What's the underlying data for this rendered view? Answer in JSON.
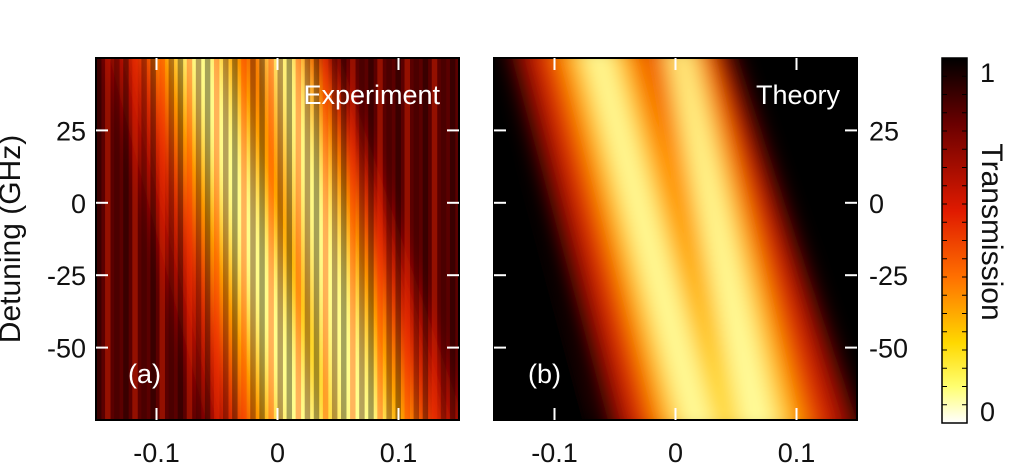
{
  "chart_data": {
    "type": "heatmap",
    "panels": [
      {
        "panel_label": "(a)",
        "title": "Experiment",
        "xticks": [
          "-0.1",
          "0",
          "0.1"
        ],
        "xtick_values": [
          -0.1,
          0,
          0.1
        ],
        "yticks": [
          "25",
          "0",
          "-25",
          "-50"
        ],
        "ytick_values": [
          25,
          0,
          -25,
          -50
        ],
        "ylabel": "Detuning (GHz)",
        "xlim": [
          -0.15,
          0.15
        ],
        "ylim": [
          -75,
          50
        ]
      },
      {
        "panel_label": "(b)",
        "title": "Theory",
        "xticks": [
          "-0.1",
          "0",
          "0.1"
        ],
        "xtick_values": [
          -0.1,
          0,
          0.1
        ],
        "yticks": [
          "25",
          "0",
          "-25",
          "-50"
        ],
        "ytick_values": [
          25,
          0,
          -25,
          -50
        ],
        "xlim": [
          -0.15,
          0.15
        ],
        "ylim": [
          -75,
          50
        ]
      }
    ],
    "colorbar": {
      "label": "Transmission",
      "ticks": [
        "1",
        "0"
      ],
      "range": [
        0,
        1
      ],
      "colormap": [
        "#000000",
        "#7a0000",
        "#e01a00",
        "#ff6a00",
        "#ffd000",
        "#ffff60",
        "#ffffff"
      ]
    },
    "features": {
      "band1": {
        "x_at_y50": -0.068,
        "slope_x_per_ghz": -0.00072
      },
      "band2": {
        "x_at_y50": 0.002,
        "slope_x_per_ghz": -0.00055
      }
    }
  }
}
